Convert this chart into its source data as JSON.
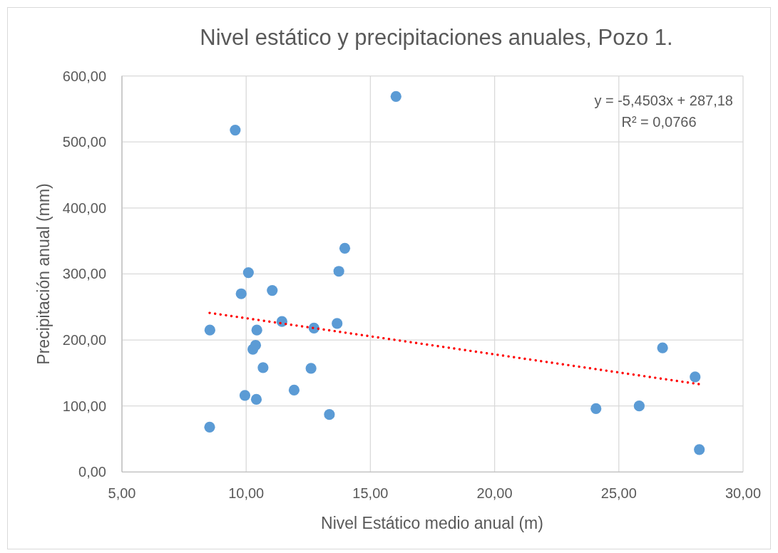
{
  "chart_data": {
    "type": "scatter",
    "title": "Nivel estático y precipitaciones anuales, Pozo 1.",
    "xlabel": "Nivel Estático medio anual (m)",
    "ylabel": "Precipitación anual (mm)",
    "xlim": [
      5,
      30
    ],
    "xticks": [
      {
        "value": 5,
        "label": "5,00"
      },
      {
        "value": 10,
        "label": "10,00"
      },
      {
        "value": 15,
        "label": "15,00"
      },
      {
        "value": 20,
        "label": "20,00"
      },
      {
        "value": 25,
        "label": "25,00"
      },
      {
        "value": 30,
        "label": "30,00"
      }
    ],
    "ylim": [
      0,
      600
    ],
    "yticks": [
      {
        "value": 0,
        "label": "0,00"
      },
      {
        "value": 100,
        "label": "100,00"
      },
      {
        "value": 200,
        "label": "200,00"
      },
      {
        "value": 300,
        "label": "300,00"
      },
      {
        "value": 400,
        "label": "400,00"
      },
      {
        "value": 500,
        "label": "500,00"
      },
      {
        "value": 600,
        "label": "600,00"
      }
    ],
    "grid": true,
    "marker": "circle",
    "series": [
      {
        "color": "#5b9bd5",
        "x": [
          8.53,
          8.54,
          9.56,
          9.8,
          9.95,
          10.09,
          10.27,
          10.38,
          10.41,
          10.43,
          10.68,
          11.05,
          11.44,
          11.93,
          12.61,
          12.73,
          13.35,
          13.66,
          13.73,
          13.97,
          16.03,
          24.08,
          25.82,
          26.76,
          28.07,
          28.24
        ],
        "values": [
          68,
          215,
          518,
          270,
          116,
          302,
          186,
          192,
          110,
          215,
          158,
          275,
          228,
          124,
          157,
          218,
          87,
          225,
          304,
          339,
          569,
          96,
          100,
          188,
          144,
          34
        ]
      },
      {
        "type": "line",
        "color": "#ff0000",
        "line_style": "dotted",
        "marker": "none",
        "x": [
          8.53,
          28.24
        ],
        "values": [
          241,
          133
        ]
      }
    ],
    "annotations": [
      "y = -5,4503x + 287,18",
      "R² = 0,0766"
    ]
  }
}
